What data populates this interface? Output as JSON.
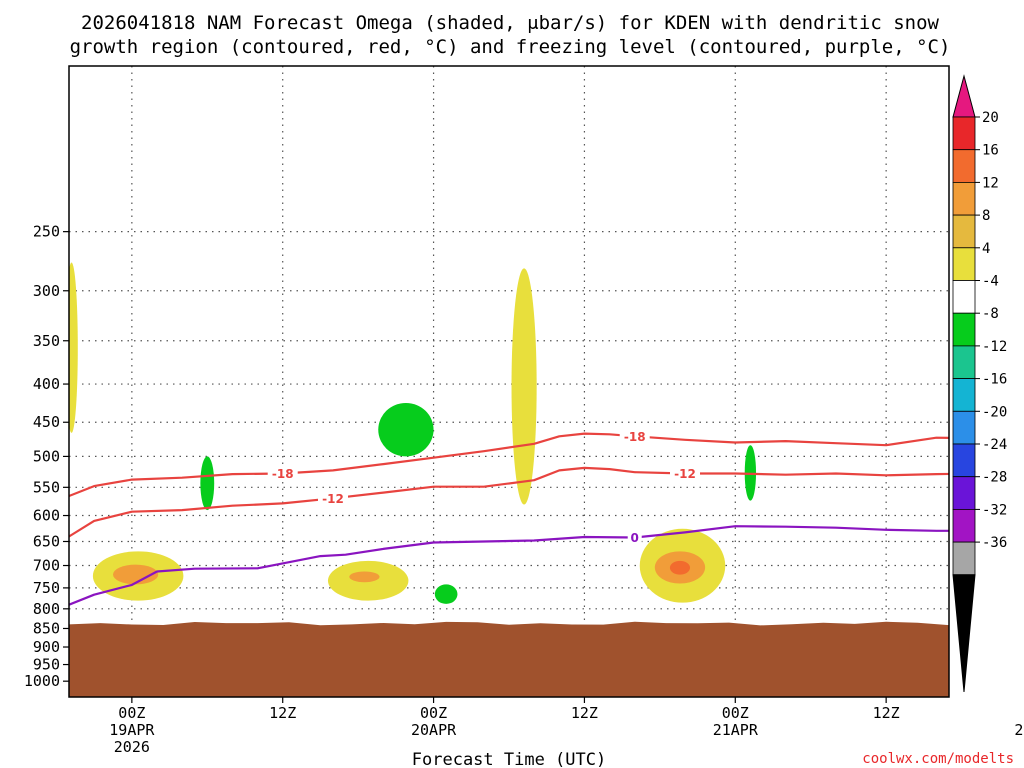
{
  "chart_data": {
    "type": "time-height",
    "title_lines": [
      "2026041818 NAM Forecast Omega (shaded, μbar/s) for KDEN with dendritic snow",
      "growth region (contoured, red, °C) and freezing level (contoured, purple, °C)"
    ],
    "xlabel": "Forecast Time (UTC)",
    "credit": "coolwx.com/modelts",
    "xlim_hours": [
      -5,
      65
    ],
    "ylim_hpa": [
      150,
      1050
    ],
    "x_ticks": [
      {
        "hour": 0,
        "label": "00Z",
        "sub1": "19APR",
        "sub2": "2026"
      },
      {
        "hour": 12,
        "label": "12Z",
        "sub1": "",
        "sub2": ""
      },
      {
        "hour": 24,
        "label": "00Z",
        "sub1": "20APR",
        "sub2": ""
      },
      {
        "hour": 36,
        "label": "12Z",
        "sub1": "",
        "sub2": ""
      },
      {
        "hour": 48,
        "label": "00Z",
        "sub1": "21APR",
        "sub2": ""
      },
      {
        "hour": 60,
        "label": "12Z",
        "sub1": "",
        "sub2": ""
      },
      {
        "hour": 72,
        "label": "00Z",
        "sub1": "22APR",
        "sub2": ""
      }
    ],
    "y_ticks": [
      250,
      300,
      350,
      400,
      450,
      500,
      550,
      600,
      650,
      700,
      750,
      800,
      850,
      900,
      950,
      1000
    ],
    "colorbar": {
      "labels": [
        "20",
        "16",
        "12",
        "8",
        "4",
        "-4",
        "-8",
        "-12",
        "-16",
        "-20",
        "-24",
        "-28",
        "-32",
        "-36"
      ],
      "colors": [
        "#e8272a",
        "#f26b2e",
        "#f19d39",
        "#e5b93e",
        "#e8df3c",
        "#ffffff",
        "#06cc1c",
        "#1bc58f",
        "#14b4d3",
        "#2c8fe8",
        "#2845e0",
        "#6a14d8",
        "#a214c4",
        "#a6a6a6"
      ],
      "top_arrow_color": "#e5187f",
      "bottom_arrow_color": "#000000"
    },
    "series": [
      {
        "name": "-18 °C isotherm",
        "color": "#e8433f",
        "label": "-18",
        "hours": [
          -5,
          -3,
          0,
          4,
          8,
          12,
          16,
          20,
          24,
          28,
          32,
          34,
          36,
          38,
          40,
          44,
          48,
          52,
          56,
          60,
          64,
          68,
          72,
          76,
          80,
          84
        ],
        "pressure": [
          565,
          548,
          537,
          534,
          528,
          527,
          522,
          512,
          502,
          492,
          481,
          470,
          466,
          467,
          470,
          475,
          479,
          477,
          480,
          483,
          472,
          473,
          479,
          474,
          468,
          462
        ],
        "label_hours": [
          12,
          40,
          68
        ]
      },
      {
        "name": "-12 °C isotherm",
        "color": "#e8433f",
        "label": "-12",
        "hours": [
          -5,
          -3,
          0,
          4,
          8,
          12,
          16,
          20,
          24,
          28,
          32,
          34,
          36,
          38,
          40,
          44,
          48,
          52,
          56,
          60,
          64,
          68,
          72,
          76,
          80,
          84
        ],
        "pressure": [
          640,
          610,
          593,
          590,
          582,
          578,
          569,
          559,
          549,
          549,
          538,
          522,
          518,
          520,
          525,
          527,
          527,
          529,
          527,
          530,
          528,
          527,
          532,
          524,
          518,
          513
        ],
        "label_hours": [
          16,
          44,
          68
        ]
      },
      {
        "name": "0 °C freezing level",
        "color": "#8a14c0",
        "label": "0",
        "hours": [
          -5,
          -3,
          0,
          2,
          5,
          10,
          15,
          17,
          20,
          24,
          28,
          32,
          36,
          40,
          44,
          48,
          52,
          56,
          60,
          64,
          68,
          72,
          76,
          80,
          84
        ],
        "pressure": [
          790,
          766,
          743,
          713,
          707,
          706,
          680,
          677,
          665,
          652,
          650,
          648,
          641,
          642,
          632,
          620,
          621,
          623,
          627,
          629,
          629,
          624,
          607,
          610,
          615
        ],
        "label_hours": [
          40,
          68
        ]
      }
    ],
    "shaded_regions": [
      {
        "name": "yellow-0-300",
        "color": "#e8df3c",
        "cx": -4.8,
        "cy": 370,
        "rx": 0.5,
        "ry": 95
      },
      {
        "name": "yellow-0-720",
        "color": "#e8df3c",
        "cx": 0.5,
        "cy": 725,
        "rx": 3.6,
        "ry": 55
      },
      {
        "name": "orange-0-720",
        "color": "#f19d39",
        "cx": 0.3,
        "cy": 720,
        "rx": 1.8,
        "ry": 22
      },
      {
        "name": "green-03-540",
        "color": "#06cc1c",
        "cx": 6.0,
        "cy": 545,
        "rx": 0.55,
        "ry": 45
      },
      {
        "name": "yellow-20-735",
        "color": "#e8df3c",
        "cx": 18.8,
        "cy": 735,
        "rx": 3.2,
        "ry": 45
      },
      {
        "name": "orange-20-725",
        "color": "#f19d39",
        "cx": 18.5,
        "cy": 725,
        "rx": 1.2,
        "ry": 12
      },
      {
        "name": "green-20-460",
        "color": "#06cc1c",
        "cx": 21.8,
        "cy": 462,
        "rx": 2.2,
        "ry": 38
      },
      {
        "name": "green-20-765",
        "color": "#06cc1c",
        "cx": 25.0,
        "cy": 765,
        "rx": 0.9,
        "ry": 23
      },
      {
        "name": "yellow-20-420",
        "color": "#e8df3c",
        "cx": 31.2,
        "cy": 430,
        "rx": 1.0,
        "ry": 150
      },
      {
        "name": "yellow-21-700",
        "color": "#e8df3c",
        "cx": 43.8,
        "cy": 705,
        "rx": 3.4,
        "ry": 80
      },
      {
        "name": "orange-21-700",
        "color": "#f19d39",
        "cx": 43.6,
        "cy": 705,
        "rx": 2.0,
        "ry": 35
      },
      {
        "name": "darkorange-21-700",
        "color": "#f26b2e",
        "cx": 43.6,
        "cy": 705,
        "rx": 0.8,
        "ry": 15
      },
      {
        "name": "green-21-525",
        "color": "#06cc1c",
        "cx": 49.2,
        "cy": 528,
        "rx": 0.45,
        "ry": 45
      },
      {
        "name": "yellow-22-640",
        "color": "#e8df3c",
        "cx": 70.0,
        "cy": 645,
        "rx": 2.4,
        "ry": 95
      },
      {
        "name": "orange-22-640",
        "color": "#f19d39",
        "cx": 70.6,
        "cy": 630,
        "rx": 0.9,
        "ry": 28
      },
      {
        "name": "green-22-640",
        "color": "#06cc1c",
        "cx": 73.4,
        "cy": 640,
        "rx": 1.7,
        "ry": 180
      },
      {
        "name": "teal-22-660",
        "color": "#1bc58f",
        "cx": 73.4,
        "cy": 665,
        "rx": 1.3,
        "ry": 125
      },
      {
        "name": "cyan-22-670",
        "color": "#14b4d3",
        "cx": 73.4,
        "cy": 672,
        "rx": 1.0,
        "ry": 95
      },
      {
        "name": "blue-22-690",
        "color": "#2c8fe8",
        "cx": 73.5,
        "cy": 690,
        "rx": 0.6,
        "ry": 45
      },
      {
        "name": "darkblue-22-690",
        "color": "#2845e0",
        "cx": 73.6,
        "cy": 692,
        "rx": 0.3,
        "ry": 25
      },
      {
        "name": "green-22b-650",
        "color": "#06cc1c",
        "cx": 76.4,
        "cy": 650,
        "rx": 0.9,
        "ry": 95
      },
      {
        "name": "teal-22b-650",
        "color": "#1bc58f",
        "cx": 76.4,
        "cy": 650,
        "rx": 0.4,
        "ry": 45
      },
      {
        "name": "yellow-22-800",
        "color": "#e8df3c",
        "cx": 79.2,
        "cy": 795,
        "rx": 0.8,
        "ry": 12
      }
    ],
    "terrain": {
      "color": "#a0522d",
      "surface_pressure_hpa": 837
    }
  }
}
